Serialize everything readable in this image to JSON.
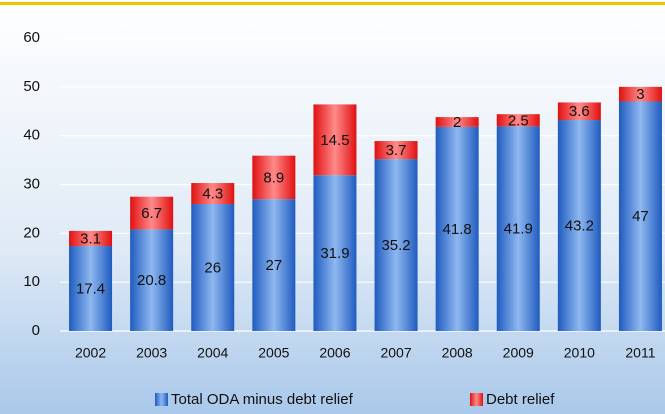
{
  "chart_data": {
    "type": "stacked_bar",
    "categories": [
      "2002",
      "2003",
      "2004",
      "2005",
      "2006",
      "2007",
      "2008",
      "2009",
      "2010",
      "2011"
    ],
    "series": [
      {
        "name": "Total ODA minus debt relief",
        "color": "#2f6fd0",
        "values": [
          17.4,
          20.8,
          26,
          27,
          31.9,
          35.2,
          41.8,
          41.9,
          43.2,
          47
        ]
      },
      {
        "name": "Debt relief",
        "color": "#ee2222",
        "values": [
          3.1,
          6.7,
          4.3,
          8.9,
          14.5,
          3.7,
          2,
          2.5,
          3.6,
          3
        ]
      }
    ],
    "ylim": [
      0,
      60
    ],
    "yticks": [
      0,
      10,
      20,
      30,
      40,
      50,
      60
    ],
    "grid": true,
    "legend": "bottom"
  }
}
